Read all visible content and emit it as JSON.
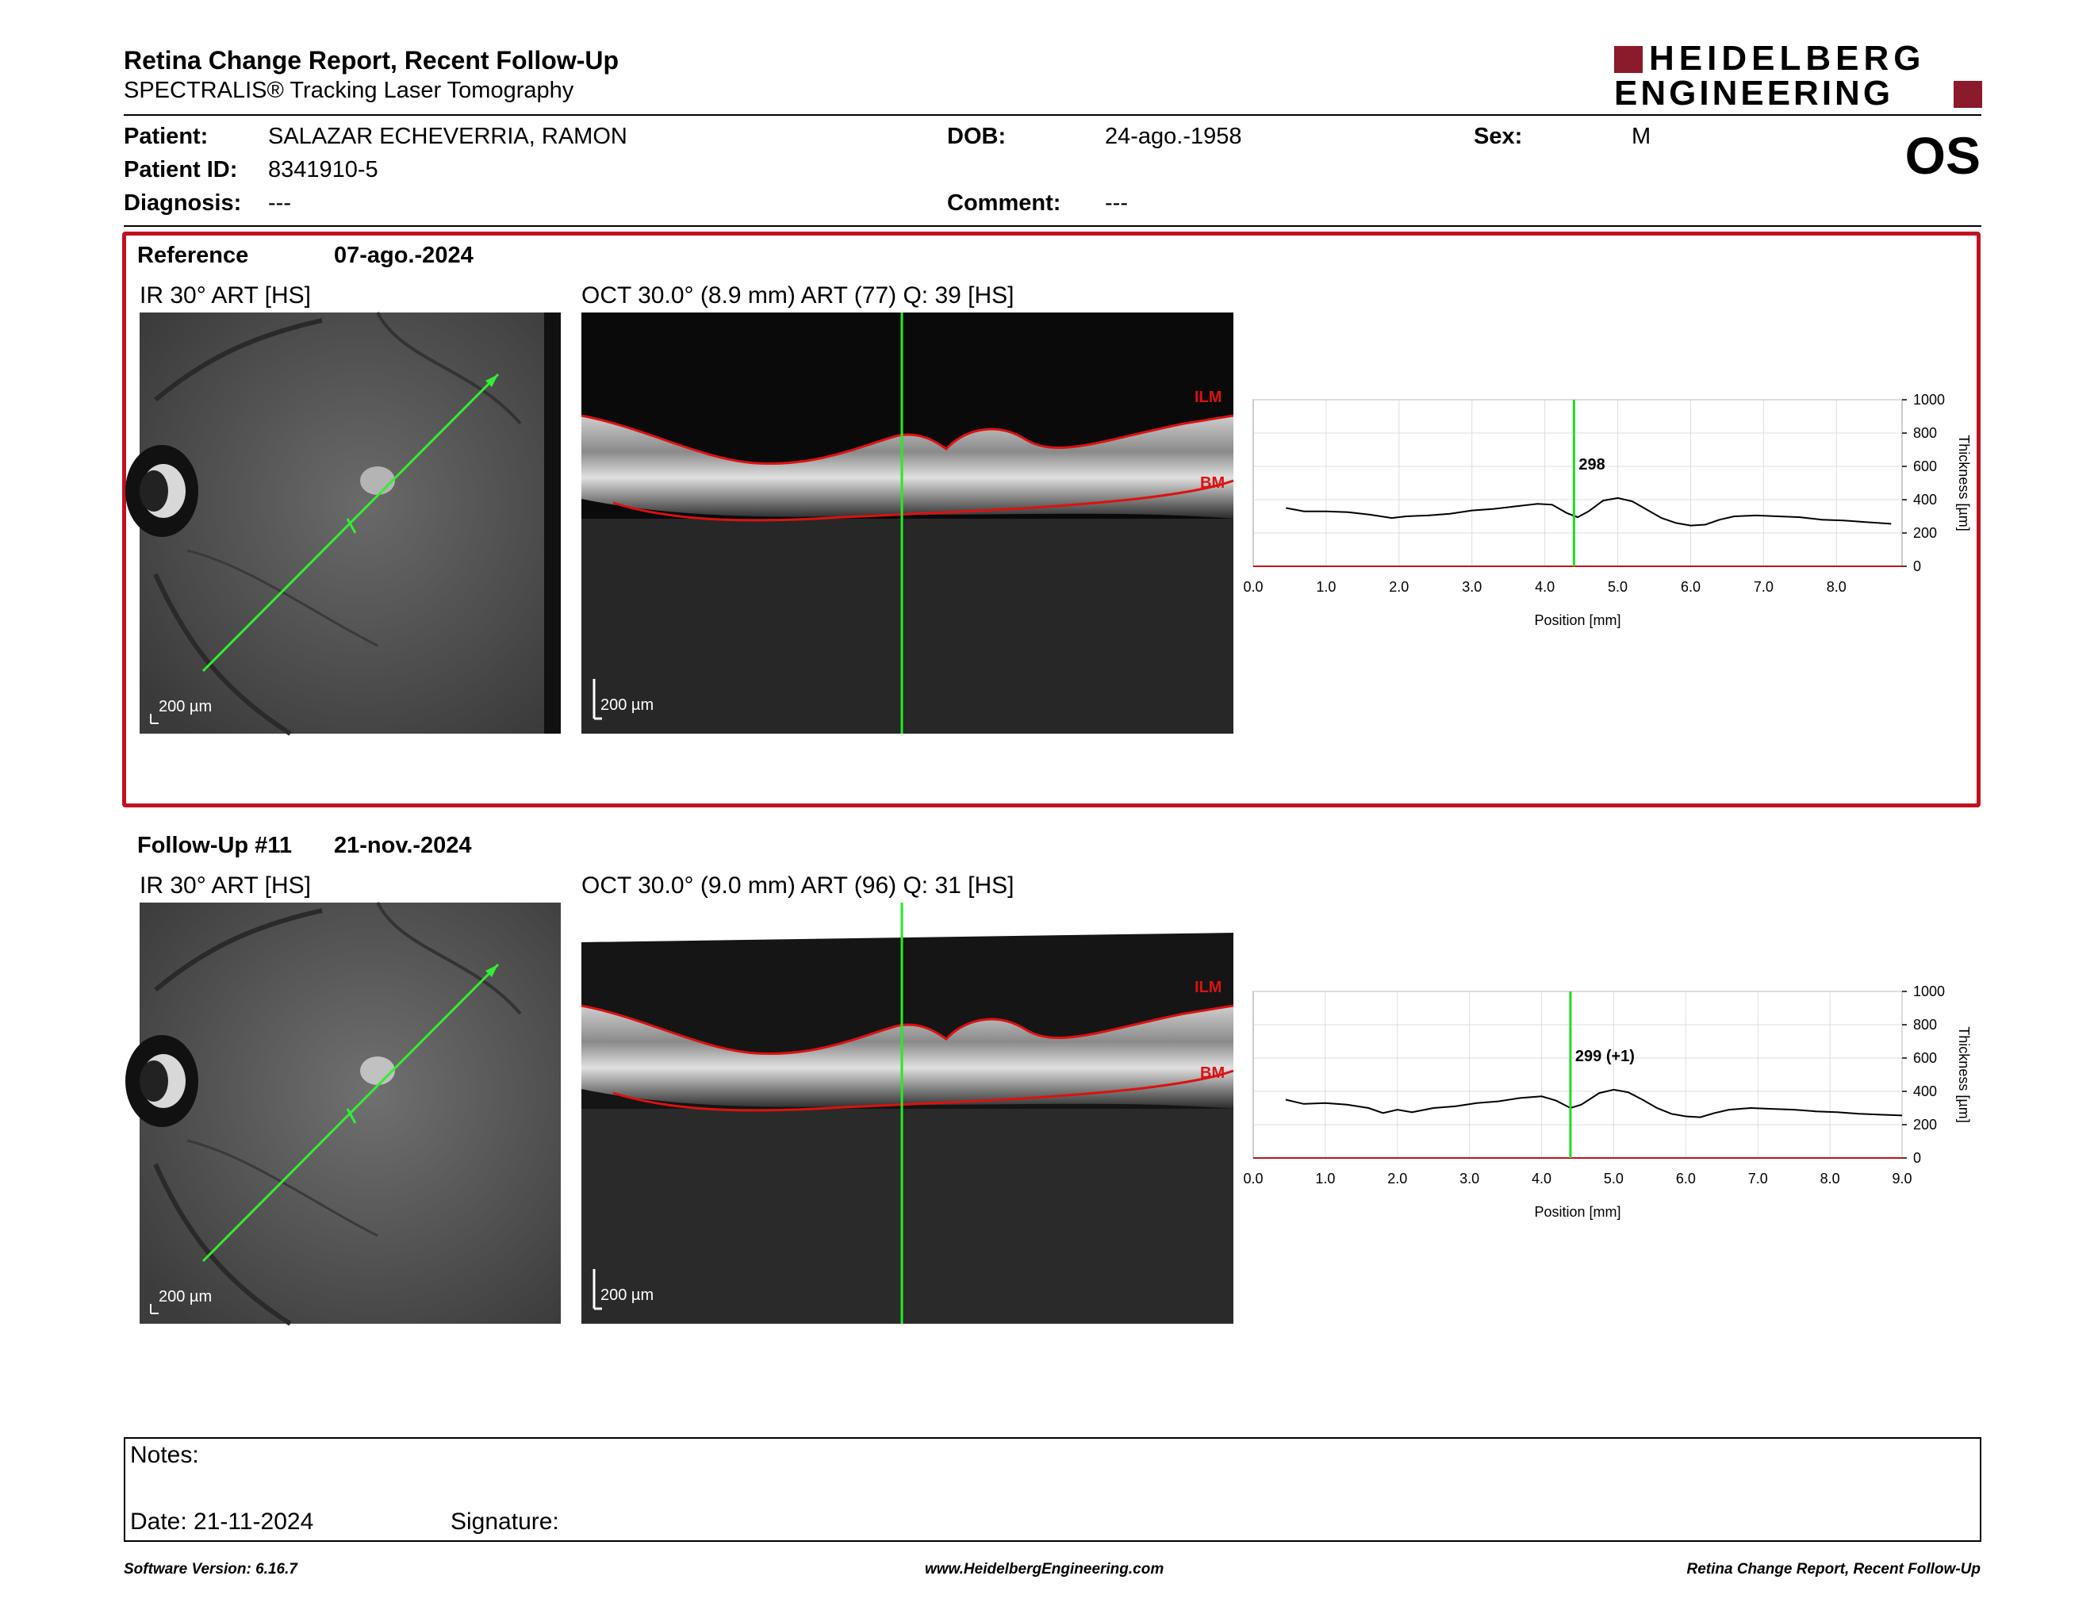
{
  "header": {
    "title": "Retina Change Report, Recent Follow-Up",
    "subtitle": "SPECTRALIS® Tracking Laser Tomography",
    "brand_line1": "HEIDELBERG",
    "brand_line2": "ENGINEERING",
    "brand_color": "#8b1a2b",
    "eye": "OS"
  },
  "patient": {
    "patient_label": "Patient:",
    "patient_value": "SALAZAR ECHEVERRIA, RAMON",
    "id_label": "Patient ID:",
    "id_value": "8341910-5",
    "diagnosis_label": "Diagnosis:",
    "diagnosis_value": "---",
    "dob_label": "DOB:",
    "dob_value": "24-ago.-1958",
    "comment_label": "Comment:",
    "comment_value": "---",
    "sex_label": "Sex:",
    "sex_value": "M"
  },
  "reference": {
    "label": "Reference",
    "date": "07-ago.-2024",
    "ir_caption": "IR 30° ART [HS]",
    "oct_caption": "OCT 30.0° (8.9 mm) ART (77) Q: 39 [HS]",
    "ir_scale": "200 µm",
    "oct_scale": "200 µm",
    "ilm": "ILM",
    "bm": "BM",
    "border_color": "#c1121f"
  },
  "followup": {
    "label": "Follow-Up #11",
    "date": "21-nov.-2024",
    "ir_caption": "IR 30° ART [HS]",
    "oct_caption": "OCT 30.0° (9.0 mm) ART (96) Q: 31 [HS]",
    "ir_scale": "200 µm",
    "oct_scale": "200 µm",
    "ilm": "ILM",
    "bm": "BM"
  },
  "chart_data": [
    {
      "type": "line",
      "title": "",
      "xlabel": "Position [mm]",
      "ylabel": "Thickness [µm]",
      "xlim": [
        0,
        8.9
      ],
      "ylim": [
        0,
        1000
      ],
      "xticks": [
        "0.0",
        "1.0",
        "2.0",
        "3.0",
        "4.0",
        "5.0",
        "6.0",
        "7.0",
        "8.0"
      ],
      "yticks": [
        "0",
        "200",
        "400",
        "600",
        "800",
        "1000"
      ],
      "cursor_x": 4.4,
      "cursor_label": "298",
      "grid": true,
      "series": [
        {
          "x": [
            0.45,
            0.7,
            1.0,
            1.3,
            1.6,
            1.9,
            2.1,
            2.4,
            2.7,
            3.0,
            3.3,
            3.6,
            3.9,
            4.1,
            4.3,
            4.45,
            4.6,
            4.8,
            5.0,
            5.2,
            5.4,
            5.6,
            5.8,
            6.0,
            6.2,
            6.4,
            6.6,
            6.9,
            7.2,
            7.5,
            7.8,
            8.1,
            8.4,
            8.75
          ],
          "y": [
            350,
            330,
            330,
            325,
            310,
            290,
            300,
            305,
            315,
            335,
            345,
            360,
            375,
            370,
            320,
            295,
            330,
            395,
            410,
            390,
            340,
            290,
            260,
            245,
            250,
            280,
            300,
            305,
            300,
            295,
            280,
            275,
            265,
            255
          ]
        }
      ]
    },
    {
      "type": "line",
      "title": "",
      "xlabel": "Position [mm]",
      "ylabel": "Thickness [µm]",
      "xlim": [
        0,
        9.0
      ],
      "ylim": [
        0,
        1000
      ],
      "xticks": [
        "0.0",
        "1.0",
        "2.0",
        "3.0",
        "4.0",
        "5.0",
        "6.0",
        "7.0",
        "8.0",
        "9.0"
      ],
      "yticks": [
        "0",
        "200",
        "400",
        "600",
        "800",
        "1000"
      ],
      "cursor_x": 4.4,
      "cursor_label": "299 (+1)",
      "grid": true,
      "series": [
        {
          "x": [
            0.45,
            0.7,
            1.0,
            1.3,
            1.6,
            1.8,
            2.0,
            2.2,
            2.5,
            2.8,
            3.1,
            3.4,
            3.7,
            4.0,
            4.2,
            4.4,
            4.55,
            4.8,
            5.0,
            5.2,
            5.4,
            5.6,
            5.8,
            6.0,
            6.2,
            6.4,
            6.6,
            6.9,
            7.2,
            7.5,
            7.8,
            8.1,
            8.4,
            8.7,
            9.0
          ],
          "y": [
            350,
            325,
            330,
            320,
            300,
            270,
            290,
            275,
            300,
            310,
            330,
            340,
            360,
            370,
            345,
            300,
            320,
            390,
            410,
            395,
            350,
            300,
            265,
            250,
            245,
            270,
            290,
            300,
            295,
            290,
            280,
            275,
            265,
            260,
            255
          ]
        }
      ]
    }
  ],
  "notes": {
    "notes_label": "Notes:",
    "date_label": "Date: 21-11-2024",
    "signature_label": "Signature:"
  },
  "footer": {
    "left": "Software Version: 6.16.7",
    "center": "www.HeidelbergEngineering.com",
    "right": "Retina Change Report, Recent Follow-Up"
  }
}
